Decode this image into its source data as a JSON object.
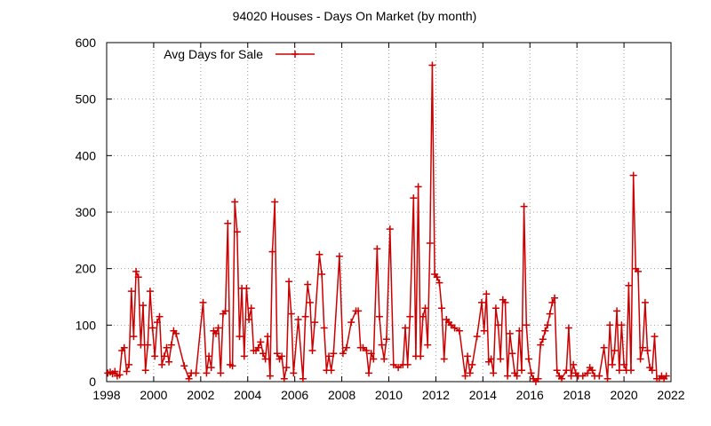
{
  "chart_data": {
    "type": "line",
    "title": "94020 Houses - Days On Market (by month)",
    "xlabel": "",
    "ylabel": "",
    "xlim": [
      1998,
      2022
    ],
    "ylim": [
      0,
      600
    ],
    "x_ticks": [
      1998,
      2000,
      2002,
      2004,
      2006,
      2008,
      2010,
      2012,
      2014,
      2016,
      2018,
      2020,
      2022
    ],
    "y_ticks": [
      0,
      100,
      200,
      300,
      400,
      500,
      600
    ],
    "grid": true,
    "legend_position": "top-left",
    "series": [
      {
        "name": "Avg Days for Sale",
        "color": "#cc0000",
        "marker": "plus",
        "points": [
          [
            1998.05,
            15
          ],
          [
            1998.15,
            17
          ],
          [
            1998.25,
            14
          ],
          [
            1998.35,
            18
          ],
          [
            1998.45,
            10
          ],
          [
            1998.55,
            12
          ],
          [
            1998.65,
            55
          ],
          [
            1998.75,
            60
          ],
          [
            1998.85,
            18
          ],
          [
            1998.95,
            30
          ],
          [
            1999.05,
            160
          ],
          [
            1999.15,
            80
          ],
          [
            1999.25,
            195
          ],
          [
            1999.35,
            185
          ],
          [
            1999.45,
            65
          ],
          [
            1999.55,
            135
          ],
          [
            1999.65,
            20
          ],
          [
            1999.75,
            65
          ],
          [
            1999.85,
            160
          ],
          [
            1999.95,
            95
          ],
          [
            2000.05,
            45
          ],
          [
            2000.15,
            105
          ],
          [
            2000.25,
            115
          ],
          [
            2000.35,
            30
          ],
          [
            2000.45,
            45
          ],
          [
            2000.55,
            60
          ],
          [
            2000.65,
            35
          ],
          [
            2000.75,
            65
          ],
          [
            2000.85,
            90
          ],
          [
            2000.95,
            85
          ],
          [
            2001.3,
            28
          ],
          [
            2001.5,
            5
          ],
          [
            2001.6,
            15
          ],
          [
            2001.8,
            15
          ],
          [
            2002.1,
            140
          ],
          [
            2002.25,
            15
          ],
          [
            2002.35,
            45
          ],
          [
            2002.45,
            25
          ],
          [
            2002.55,
            90
          ],
          [
            2002.65,
            85
          ],
          [
            2002.75,
            95
          ],
          [
            2002.85,
            15
          ],
          [
            2002.95,
            120
          ],
          [
            2003.05,
            125
          ],
          [
            2003.15,
            280
          ],
          [
            2003.25,
            30
          ],
          [
            2003.35,
            28
          ],
          [
            2003.45,
            318
          ],
          [
            2003.55,
            265
          ],
          [
            2003.65,
            80
          ],
          [
            2003.75,
            165
          ],
          [
            2003.85,
            45
          ],
          [
            2003.95,
            165
          ],
          [
            2004.05,
            110
          ],
          [
            2004.15,
            130
          ],
          [
            2004.25,
            55
          ],
          [
            2004.35,
            55
          ],
          [
            2004.45,
            60
          ],
          [
            2004.55,
            70
          ],
          [
            2004.65,
            50
          ],
          [
            2004.75,
            40
          ],
          [
            2004.85,
            80
          ],
          [
            2004.95,
            10
          ],
          [
            2005.05,
            230
          ],
          [
            2005.15,
            318
          ],
          [
            2005.25,
            50
          ],
          [
            2005.35,
            40
          ],
          [
            2005.45,
            45
          ],
          [
            2005.55,
            5
          ],
          [
            2005.65,
            25
          ],
          [
            2005.75,
            177
          ],
          [
            2005.85,
            120
          ],
          [
            2005.95,
            15
          ],
          [
            2006.15,
            110
          ],
          [
            2006.35,
            5
          ],
          [
            2006.45,
            115
          ],
          [
            2006.55,
            172
          ],
          [
            2006.65,
            140
          ],
          [
            2006.75,
            55
          ],
          [
            2006.85,
            105
          ],
          [
            2007.05,
            225
          ],
          [
            2007.15,
            190
          ],
          [
            2007.25,
            95
          ],
          [
            2007.35,
            20
          ],
          [
            2007.45,
            45
          ],
          [
            2007.55,
            20
          ],
          [
            2007.65,
            50
          ],
          [
            2007.9,
            222
          ],
          [
            2008.05,
            50
          ],
          [
            2008.2,
            60
          ],
          [
            2008.4,
            105
          ],
          [
            2008.6,
            125
          ],
          [
            2008.7,
            125
          ],
          [
            2008.8,
            60
          ],
          [
            2008.9,
            60
          ],
          [
            2009.05,
            55
          ],
          [
            2009.15,
            15
          ],
          [
            2009.25,
            50
          ],
          [
            2009.35,
            40
          ],
          [
            2009.5,
            235
          ],
          [
            2009.6,
            115
          ],
          [
            2009.7,
            65
          ],
          [
            2009.8,
            40
          ],
          [
            2009.9,
            75
          ],
          [
            2010.05,
            270
          ],
          [
            2010.2,
            30
          ],
          [
            2010.4,
            25
          ],
          [
            2010.6,
            30
          ],
          [
            2010.7,
            95
          ],
          [
            2010.8,
            30
          ],
          [
            2010.9,
            115
          ],
          [
            2011.05,
            325
          ],
          [
            2011.15,
            45
          ],
          [
            2011.25,
            345
          ],
          [
            2011.35,
            45
          ],
          [
            2011.45,
            115
          ],
          [
            2011.55,
            130
          ],
          [
            2011.65,
            65
          ],
          [
            2011.75,
            245
          ],
          [
            2011.85,
            560
          ],
          [
            2011.95,
            190
          ],
          [
            2012.05,
            185
          ],
          [
            2012.15,
            175
          ],
          [
            2012.25,
            130
          ],
          [
            2012.35,
            40
          ],
          [
            2012.45,
            110
          ],
          [
            2012.55,
            105
          ],
          [
            2012.65,
            100
          ],
          [
            2012.8,
            95
          ],
          [
            2013.0,
            90
          ],
          [
            2013.25,
            10
          ],
          [
            2013.35,
            45
          ],
          [
            2013.45,
            15
          ],
          [
            2013.55,
            30
          ],
          [
            2013.75,
            80
          ],
          [
            2013.95,
            140
          ],
          [
            2014.05,
            90
          ],
          [
            2014.15,
            155
          ],
          [
            2014.25,
            35
          ],
          [
            2014.35,
            40
          ],
          [
            2014.45,
            15
          ],
          [
            2014.55,
            130
          ],
          [
            2014.65,
            100
          ],
          [
            2014.75,
            40
          ],
          [
            2014.85,
            145
          ],
          [
            2014.95,
            140
          ],
          [
            2015.05,
            10
          ],
          [
            2015.15,
            85
          ],
          [
            2015.25,
            50
          ],
          [
            2015.35,
            15
          ],
          [
            2015.45,
            10
          ],
          [
            2015.55,
            90
          ],
          [
            2015.65,
            20
          ],
          [
            2015.75,
            310
          ],
          [
            2015.85,
            100
          ],
          [
            2015.95,
            40
          ],
          [
            2016.05,
            15
          ],
          [
            2016.15,
            5
          ],
          [
            2016.25,
            0
          ],
          [
            2016.35,
            5
          ],
          [
            2016.45,
            65
          ],
          [
            2016.55,
            75
          ],
          [
            2016.65,
            90
          ],
          [
            2016.75,
            100
          ],
          [
            2016.85,
            120
          ],
          [
            2016.95,
            140
          ],
          [
            2017.05,
            148
          ],
          [
            2017.15,
            20
          ],
          [
            2017.25,
            10
          ],
          [
            2017.35,
            5
          ],
          [
            2017.55,
            20
          ],
          [
            2017.65,
            95
          ],
          [
            2017.75,
            10
          ],
          [
            2017.85,
            30
          ],
          [
            2017.95,
            15
          ],
          [
            2018.05,
            10
          ],
          [
            2018.25,
            10
          ],
          [
            2018.45,
            15
          ],
          [
            2018.55,
            25
          ],
          [
            2018.65,
            20
          ],
          [
            2018.75,
            10
          ],
          [
            2018.95,
            10
          ],
          [
            2019.15,
            60
          ],
          [
            2019.3,
            5
          ],
          [
            2019.4,
            100
          ],
          [
            2019.5,
            30
          ],
          [
            2019.6,
            55
          ],
          [
            2019.7,
            125
          ],
          [
            2019.8,
            20
          ],
          [
            2019.9,
            100
          ],
          [
            2020.0,
            30
          ],
          [
            2020.1,
            20
          ],
          [
            2020.2,
            170
          ],
          [
            2020.3,
            20
          ],
          [
            2020.4,
            365
          ],
          [
            2020.5,
            200
          ],
          [
            2020.6,
            195
          ],
          [
            2020.7,
            40
          ],
          [
            2020.8,
            60
          ],
          [
            2020.9,
            140
          ],
          [
            2021.0,
            55
          ],
          [
            2021.1,
            25
          ],
          [
            2021.2,
            20
          ],
          [
            2021.3,
            80
          ],
          [
            2021.4,
            5
          ],
          [
            2021.5,
            5
          ],
          [
            2021.6,
            10
          ],
          [
            2021.7,
            5
          ],
          [
            2021.8,
            10
          ]
        ]
      }
    ]
  }
}
